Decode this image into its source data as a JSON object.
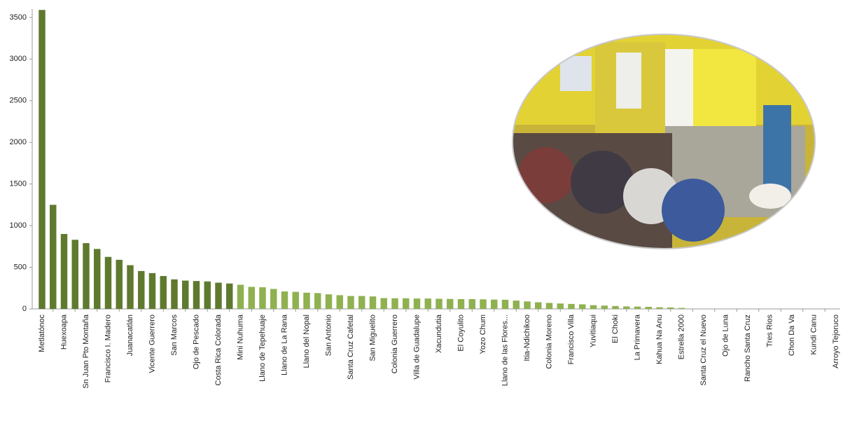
{
  "chart_data": {
    "type": "bar",
    "categories": [
      "Metlatónoc",
      null,
      "Huexoapa",
      null,
      "Sn Juan Pto Montaña",
      null,
      "Francisco I. Madero",
      null,
      "Juanacatlán",
      null,
      "Vicente Guerrero",
      null,
      "San Marcos",
      null,
      "Ojo de Pescado",
      null,
      "Costa Rica Colorada",
      null,
      "Mini Nuhuma",
      null,
      "Llano de Tepehuaje",
      null,
      "Llano de La Rana",
      null,
      "Llano del Nopal",
      null,
      "San Antonio",
      null,
      "Santa Cruz Cafetal",
      null,
      "San Miguelito",
      null,
      "Colonia Guerrero",
      null,
      "Villa de Guadalupe",
      null,
      "Xacundutia",
      null,
      "El Coyulito",
      null,
      "Yozo Chum",
      null,
      "Llano de las Flores...",
      null,
      "Itia-Ndichikoo",
      null,
      "Colonia Moreno",
      null,
      "Francisco Villa",
      null,
      "Yuvitiaqui",
      null,
      "El Choki",
      null,
      "La Primavera",
      null,
      "Kahua Na Anu",
      null,
      "Estrella 2000",
      null,
      "Santa Cruz el Nuevo",
      null,
      "Ojo de Luna",
      null,
      "Rancho Santa Cruz",
      null,
      "Tres Rios",
      null,
      "Chon Da Va",
      null,
      "Kundi Canu",
      null,
      "Arroyo Tejoruco"
    ],
    "values": [
      3590,
      1250,
      900,
      830,
      790,
      720,
      625,
      590,
      525,
      455,
      430,
      395,
      355,
      340,
      335,
      330,
      315,
      305,
      290,
      265,
      260,
      240,
      210,
      205,
      195,
      190,
      175,
      165,
      155,
      155,
      150,
      130,
      128,
      128,
      125,
      125,
      122,
      120,
      118,
      118,
      115,
      112,
      110,
      100,
      90,
      80,
      72,
      65,
      60,
      55,
      45,
      40,
      35,
      30,
      28,
      25,
      20,
      18,
      12,
      0,
      0,
      0,
      0,
      0,
      0,
      0,
      0,
      0,
      0,
      0,
      0,
      0,
      0
    ],
    "colors": [
      "#5f7a2f",
      "#8fb150"
    ],
    "dark_count": 18,
    "ylim": [
      0,
      3600
    ],
    "yticks": [
      0,
      500,
      1000,
      1500,
      2000,
      2500,
      3000,
      3500
    ]
  }
}
